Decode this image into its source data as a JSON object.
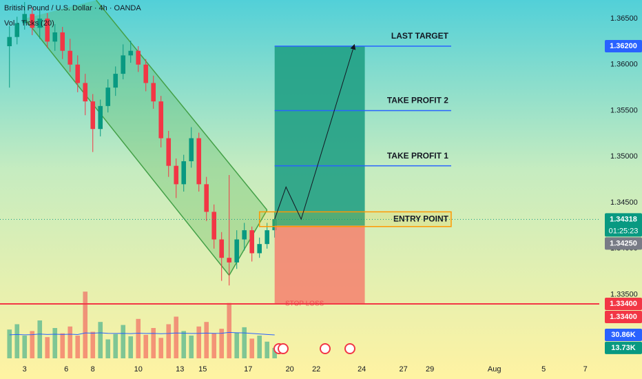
{
  "chart_data": {
    "type": "candlestick",
    "title": "British Pound / U.S. Dollar · 4h · OANDA",
    "subtitle": "Vol · Ticks (20)",
    "up_color": "#089981",
    "down_color": "#f23645",
    "x": [
      -4,
      -2,
      0,
      2,
      4,
      6,
      8,
      10,
      12,
      14,
      16,
      18,
      20,
      22,
      24,
      26,
      28,
      30,
      32,
      34,
      36,
      38,
      40,
      42,
      44,
      46,
      48,
      50,
      52,
      54,
      56,
      58,
      60,
      62,
      64,
      66
    ],
    "open": [
      1.362,
      1.363,
      1.3645,
      1.3655,
      1.364,
      1.365,
      1.3625,
      1.3635,
      1.3615,
      1.36,
      1.358,
      1.356,
      1.353,
      1.3555,
      1.3575,
      1.359,
      1.361,
      1.3615,
      1.36,
      1.358,
      1.356,
      1.352,
      1.349,
      1.347,
      1.3495,
      1.352,
      1.347,
      1.344,
      1.341,
      1.339,
      1.3385,
      1.341,
      1.342,
      1.3395,
      1.3405,
      1.342
    ],
    "high": [
      1.3642,
      1.3652,
      1.3668,
      1.3662,
      1.366,
      1.3656,
      1.3644,
      1.3641,
      1.3628,
      1.361,
      1.359,
      1.3568,
      1.3562,
      1.3584,
      1.3598,
      1.3622,
      1.3626,
      1.362,
      1.3606,
      1.3588,
      1.3566,
      1.3528,
      1.3498,
      1.3502,
      1.3532,
      1.3526,
      1.3478,
      1.3448,
      1.3418,
      1.348,
      1.342,
      1.3428,
      1.3424,
      1.3412,
      1.3428,
      1.344
    ],
    "low": [
      1.3575,
      1.3622,
      1.3638,
      1.3632,
      1.3628,
      1.3618,
      1.3615,
      1.3606,
      1.3592,
      1.357,
      1.3545,
      1.3505,
      1.3522,
      1.3548,
      1.3566,
      1.3584,
      1.3602,
      1.3592,
      1.3571,
      1.3552,
      1.351,
      1.3478,
      1.3455,
      1.3462,
      1.3488,
      1.3462,
      1.343,
      1.34,
      1.3365,
      1.336,
      1.3378,
      1.3398,
      1.3386,
      1.339,
      1.34,
      1.3412
    ],
    "close": [
      1.363,
      1.3645,
      1.3655,
      1.364,
      1.365,
      1.3625,
      1.3635,
      1.3615,
      1.36,
      1.358,
      1.356,
      1.353,
      1.3555,
      1.3575,
      1.359,
      1.361,
      1.3615,
      1.36,
      1.358,
      1.356,
      1.352,
      1.349,
      1.347,
      1.3495,
      1.352,
      1.347,
      1.344,
      1.341,
      1.339,
      1.3385,
      1.341,
      1.342,
      1.3395,
      1.3405,
      1.342,
      1.3432
    ],
    "xlim": [
      -6.5,
      151.7
    ],
    "xticks": [
      {
        "value": 0,
        "label": "3"
      },
      {
        "value": 11,
        "label": "6"
      },
      {
        "value": 18,
        "label": "8"
      },
      {
        "value": 30,
        "label": "10"
      },
      {
        "value": 41,
        "label": "13"
      },
      {
        "value": 47,
        "label": "15"
      },
      {
        "value": 59,
        "label": "17"
      },
      {
        "value": 70,
        "label": "20"
      },
      {
        "value": 77,
        "label": "22"
      },
      {
        "value": 89,
        "label": "24"
      },
      {
        "value": 100,
        "label": "27"
      },
      {
        "value": 107,
        "label": "29"
      },
      {
        "value": 124,
        "label": "Aug"
      },
      {
        "value": 137,
        "label": "5"
      },
      {
        "value": 148,
        "label": "7"
      }
    ],
    "ylim": [
      1.32808,
      1.36702
    ],
    "yticks": [
      {
        "value": 1.365,
        "label": "1.36500"
      },
      {
        "value": 1.36,
        "label": "1.36000"
      },
      {
        "value": 1.355,
        "label": "1.35500"
      },
      {
        "value": 1.35,
        "label": "1.35000"
      },
      {
        "value": 1.345,
        "label": "1.34500"
      },
      {
        "value": 1.34,
        "label": "1.34000"
      },
      {
        "value": 1.335,
        "label": "1.33500"
      }
    ],
    "volume": {
      "ylim": [
        0,
        100
      ],
      "ma_color": "#2962ff",
      "values": [
        38,
        45,
        30,
        36,
        50,
        28,
        40,
        33,
        42,
        30,
        88,
        35,
        48,
        25,
        32,
        44,
        29,
        52,
        31,
        40,
        27,
        45,
        55,
        36,
        30,
        42,
        48,
        33,
        39,
        73,
        34,
        41,
        26,
        30,
        22,
        13.73
      ],
      "ma": [
        31,
        31.5,
        31,
        31.2,
        32,
        31.5,
        31.8,
        31.5,
        31.8,
        31.4,
        33.5,
        33.2,
        33.6,
        33,
        32.8,
        33,
        32.6,
        33.2,
        32.8,
        33,
        32.5,
        32.8,
        33.4,
        33.2,
        32.8,
        33,
        33.3,
        33,
        33.1,
        34.2,
        33.8,
        33.5,
        32.8,
        32.2,
        31.5,
        30.86
      ]
    },
    "channel": {
      "upper": {
        "x": [
          18.9,
          64
        ],
        "values": [
          1.367,
          1.3442
        ]
      },
      "lower": {
        "x": [
          0,
          54
        ],
        "values": [
          1.365,
          1.3371
        ]
      }
    },
    "position": {
      "x": [
        66,
        89.8
      ],
      "entry": 1.3425,
      "target": 1.362,
      "stop": 1.334
    },
    "targets_x": [
      66,
      112.6
    ],
    "targets": [
      {
        "label": "LAST TARGET",
        "value": 1.362
      },
      {
        "label": "TAKE PROFIT 2",
        "value": 1.355
      },
      {
        "label": "TAKE PROFIT 1",
        "value": 1.349
      }
    ],
    "entry": {
      "label": "ENTRY POINT",
      "x": [
        62,
        112.6
      ],
      "values": [
        1.3424,
        1.344
      ]
    },
    "stop": {
      "label": "STOP LOSS",
      "value": 1.334
    },
    "projection": {
      "x": [
        66,
        69,
        73,
        87
      ],
      "values": [
        1.3432,
        1.3467,
        1.3432,
        1.3621
      ]
    },
    "price_tags": [
      {
        "value": 1.362,
        "label": "1.36200",
        "color": "#2962ff"
      },
      {
        "value": 1.34318,
        "label": "1.34318",
        "color": "#089981",
        "countdown": "01:25:23"
      },
      {
        "value": 1.3425,
        "label": "1.34250",
        "color": "#787b86"
      },
      {
        "value": 1.334,
        "label": "1.33400",
        "color": "#f23645"
      },
      {
        "value": 1.334,
        "label": "1.33400",
        "color": "#f23645"
      }
    ],
    "volume_tags": [
      {
        "value": 30.86,
        "label": "30.86K",
        "color": "#2962ff"
      },
      {
        "value": 13.73,
        "label": "13.73K",
        "color": "#089981"
      }
    ]
  }
}
